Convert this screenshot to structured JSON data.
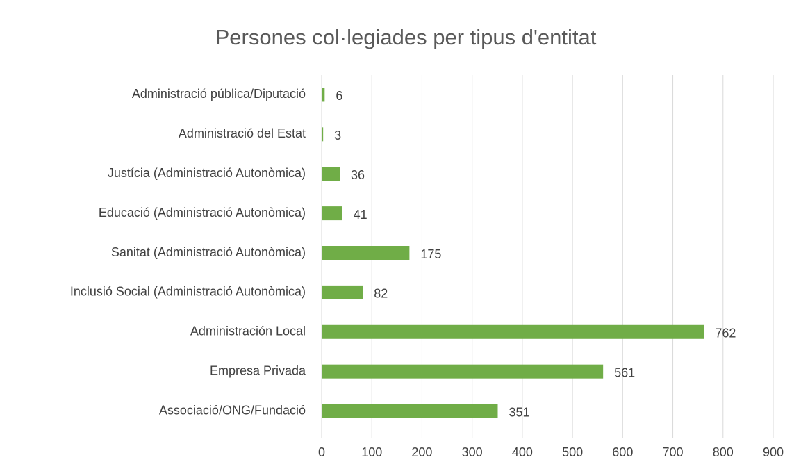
{
  "chart_data": {
    "type": "bar",
    "orientation": "horizontal",
    "title": "Persones col·legiades per tipus d'entitat",
    "categories": [
      "Administració pública/Diputació",
      "Administració del Estat",
      "Justícia (Administració Autonòmica)",
      "Educació (Administració Autonòmica)",
      "Sanitat (Administració Autonòmica)",
      "Inclusió Social (Administració Autonòmica)",
      "Administración Local",
      "Empresa Privada",
      "Associació/ONG/Fundació"
    ],
    "values": [
      6,
      3,
      36,
      41,
      175,
      82,
      762,
      561,
      351
    ],
    "color": "#70ad47",
    "xlim": [
      0,
      900
    ],
    "xticks": [
      0,
      100,
      200,
      300,
      400,
      500,
      600,
      700,
      800,
      900
    ],
    "grid": true
  }
}
